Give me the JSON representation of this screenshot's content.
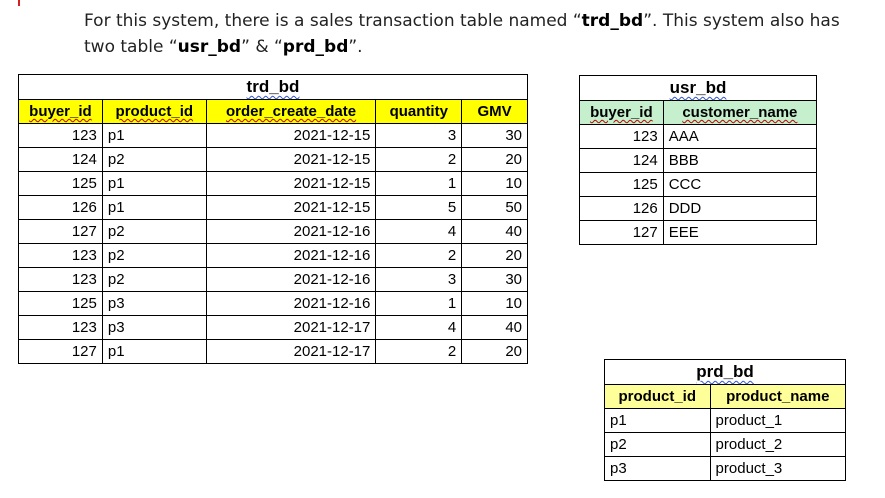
{
  "intro": {
    "part1": "For this system, there is a sales transaction table named “",
    "trd_name": "trd_bd",
    "part2": "”. This system also has two table “",
    "usr_name": "usr_bd",
    "part3": "” & “",
    "prd_name": "prd_bd",
    "part4": "”."
  },
  "trd_bd": {
    "title": "trd_bd",
    "headers": [
      "buyer_id",
      "product_id",
      "order_create_date",
      "quantity",
      "GMV"
    ],
    "rows": [
      [
        "123",
        "p1",
        "2021-12-15",
        "3",
        "30"
      ],
      [
        "124",
        "p2",
        "2021-12-15",
        "2",
        "20"
      ],
      [
        "125",
        "p1",
        "2021-12-15",
        "1",
        "10"
      ],
      [
        "126",
        "p1",
        "2021-12-15",
        "5",
        "50"
      ],
      [
        "127",
        "p2",
        "2021-12-16",
        "4",
        "40"
      ],
      [
        "123",
        "p2",
        "2021-12-16",
        "2",
        "20"
      ],
      [
        "123",
        "p2",
        "2021-12-16",
        "3",
        "30"
      ],
      [
        "125",
        "p3",
        "2021-12-16",
        "1",
        "10"
      ],
      [
        "123",
        "p3",
        "2021-12-17",
        "4",
        "40"
      ],
      [
        "127",
        "p1",
        "2021-12-17",
        "2",
        "20"
      ]
    ],
    "header_color": "#ffff00"
  },
  "usr_bd": {
    "title": "usr_bd",
    "headers": [
      "buyer_id",
      "customer_name"
    ],
    "rows": [
      [
        "123",
        "AAA"
      ],
      [
        "124",
        "BBB"
      ],
      [
        "125",
        "CCC"
      ],
      [
        "126",
        "DDD"
      ],
      [
        "127",
        "EEE"
      ]
    ],
    "header_color": "#c6efce"
  },
  "prd_bd": {
    "title": "prd_bd",
    "headers": [
      "product_id",
      "product_name"
    ],
    "rows": [
      [
        "p1",
        "product_1"
      ],
      [
        "p2",
        "product_2"
      ],
      [
        "p3",
        "product_3"
      ]
    ],
    "header_color": "#ffff99"
  }
}
